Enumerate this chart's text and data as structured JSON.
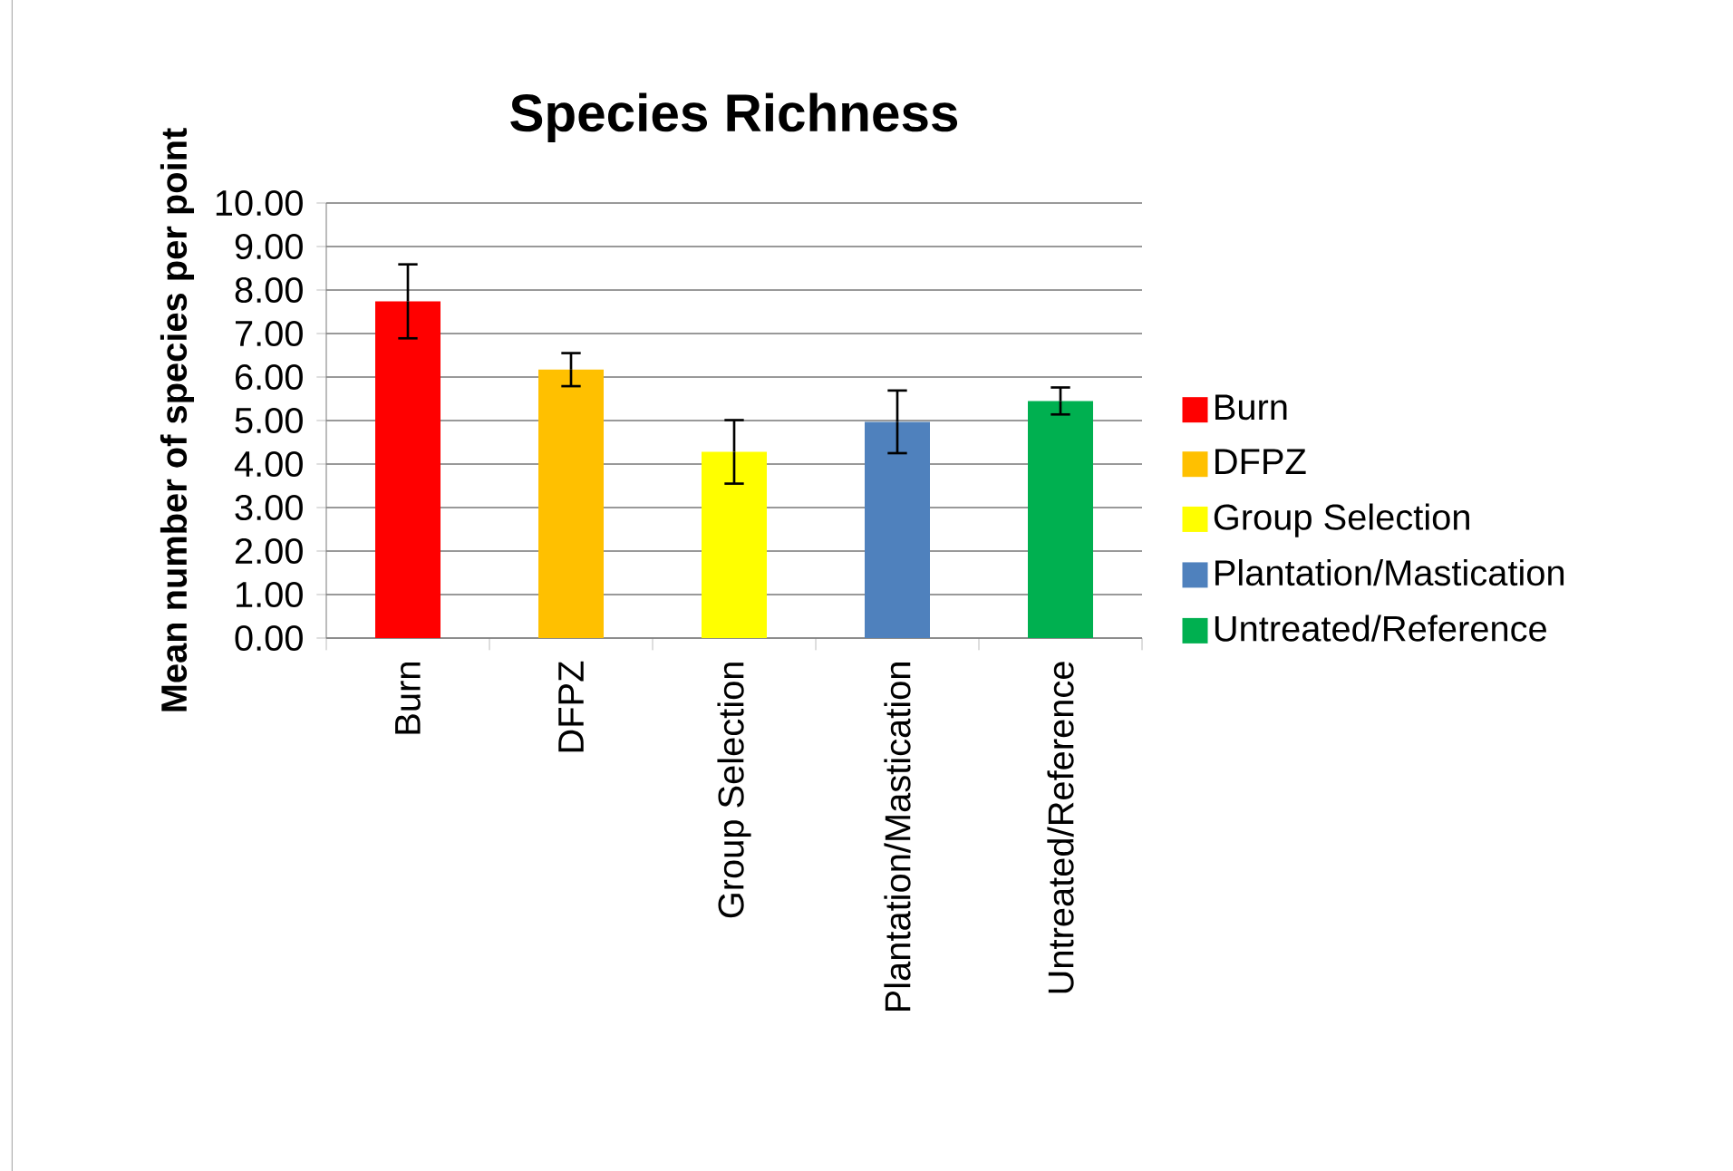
{
  "chart_data": {
    "type": "bar",
    "title": "Species Richness",
    "ylabel": "Mean number of species per point",
    "categories": [
      "Burn",
      "DFPZ",
      "Group Selection",
      "Plantation/Mastication",
      "Untreated/Reference"
    ],
    "series": [
      {
        "name": "Burn",
        "color": "#ff0000",
        "values": [
          7.74,
          null,
          null,
          null,
          null
        ],
        "errors": [
          0.85,
          null,
          null,
          null,
          null
        ]
      },
      {
        "name": "DFPZ",
        "color": "#ffc000",
        "values": [
          null,
          6.17,
          null,
          null,
          null
        ],
        "errors": [
          null,
          0.38,
          null,
          null,
          null
        ]
      },
      {
        "name": "Group Selection",
        "color": "#ffff00",
        "values": [
          null,
          null,
          4.28,
          null,
          null
        ],
        "errors": [
          null,
          null,
          0.73,
          null,
          null
        ]
      },
      {
        "name": "Plantation/Mastication",
        "color": "#4f81bd",
        "values": [
          null,
          null,
          null,
          4.97,
          null
        ],
        "errors": [
          null,
          null,
          null,
          0.72,
          null
        ]
      },
      {
        "name": "Untreated/Reference",
        "color": "#00b050",
        "values": [
          null,
          null,
          null,
          null,
          5.45
        ],
        "errors": [
          null,
          null,
          null,
          null,
          0.31
        ]
      }
    ],
    "ylim": [
      0,
      10
    ],
    "yticks": [
      {
        "value": 0,
        "label": "0.00"
      },
      {
        "value": 1,
        "label": "1.00"
      },
      {
        "value": 2,
        "label": "2.00"
      },
      {
        "value": 3,
        "label": "3.00"
      },
      {
        "value": 4,
        "label": "4.00"
      },
      {
        "value": 5,
        "label": "5.00"
      },
      {
        "value": 6,
        "label": "6.00"
      },
      {
        "value": 7,
        "label": "7.00"
      },
      {
        "value": 8,
        "label": "8.00"
      },
      {
        "value": 9,
        "label": "9.00"
      },
      {
        "value": 10,
        "label": "10.00"
      }
    ],
    "grid": "y",
    "legend": "right"
  }
}
